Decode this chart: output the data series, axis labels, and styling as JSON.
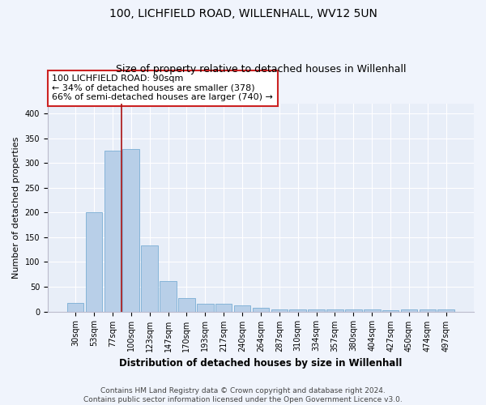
{
  "title": "100, LICHFIELD ROAD, WILLENHALL, WV12 5UN",
  "subtitle": "Size of property relative to detached houses in Willenhall",
  "xlabel": "Distribution of detached houses by size in Willenhall",
  "ylabel": "Number of detached properties",
  "categories": [
    "30sqm",
    "53sqm",
    "77sqm",
    "100sqm",
    "123sqm",
    "147sqm",
    "170sqm",
    "193sqm",
    "217sqm",
    "240sqm",
    "264sqm",
    "287sqm",
    "310sqm",
    "334sqm",
    "357sqm",
    "380sqm",
    "404sqm",
    "427sqm",
    "450sqm",
    "474sqm",
    "497sqm"
  ],
  "values": [
    18,
    200,
    325,
    328,
    133,
    62,
    27,
    16,
    15,
    13,
    7,
    5,
    4,
    4,
    4,
    4,
    4,
    3,
    4,
    4,
    4
  ],
  "bar_color": "#b8cfe8",
  "bar_edge_color": "#7aadd4",
  "highlight_line_color": "#aa1111",
  "annotation_text": "100 LICHFIELD ROAD: 90sqm\n← 34% of detached houses are smaller (378)\n66% of semi-detached houses are larger (740) →",
  "annotation_box_color": "#ffffff",
  "annotation_box_edge_color": "#cc2222",
  "ylim": [
    0,
    420
  ],
  "yticks": [
    0,
    50,
    100,
    150,
    200,
    250,
    300,
    350,
    400
  ],
  "background_color": "#e8eef8",
  "grid_color": "#ffffff",
  "footer_text": "Contains HM Land Registry data © Crown copyright and database right 2024.\nContains public sector information licensed under the Open Government Licence v3.0.",
  "title_fontsize": 10,
  "subtitle_fontsize": 9,
  "xlabel_fontsize": 8.5,
  "ylabel_fontsize": 8,
  "tick_fontsize": 7,
  "footer_fontsize": 6.5,
  "annot_fontsize": 8
}
